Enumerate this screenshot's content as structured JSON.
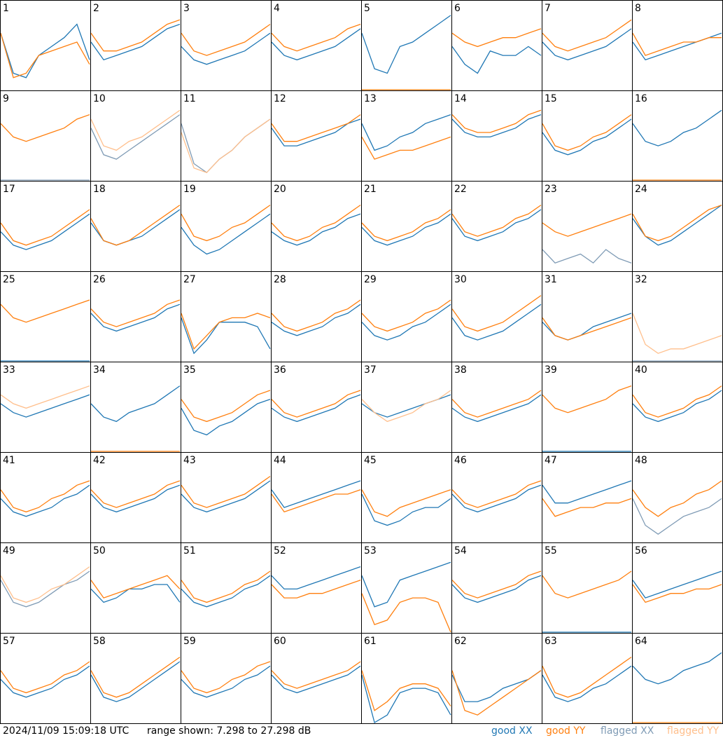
{
  "timestamp": "2024/11/09 15:09:18 UTC",
  "range_label": "range shown: 7.298 to 27.298 dB",
  "ylim": [
    7.298,
    27.298
  ],
  "legend": [
    {
      "name": "good XX",
      "color": "#1f77b4"
    },
    {
      "name": "good YY",
      "color": "#ff7f0e"
    },
    {
      "name": "flagged XX",
      "color": "#7f9bb5"
    },
    {
      "name": "flagged YY",
      "color": "#ffbf8c"
    }
  ],
  "panels": [
    {
      "label": 1,
      "xx": [
        20,
        11,
        10,
        15,
        17,
        19,
        22,
        14
      ],
      "yy": [
        20,
        10,
        11,
        15,
        16,
        17,
        18,
        13
      ]
    },
    {
      "label": 2,
      "xx": [
        18,
        14,
        15,
        16,
        17,
        19,
        21,
        22
      ],
      "yy": [
        20,
        16,
        16,
        17,
        18,
        20,
        22,
        23
      ]
    },
    {
      "label": 3,
      "xx": [
        17,
        14,
        13,
        14,
        15,
        16,
        18,
        20
      ],
      "yy": [
        20,
        16,
        15,
        16,
        17,
        18,
        20,
        22
      ]
    },
    {
      "label": 4,
      "xx": [
        18,
        15,
        14,
        15,
        16,
        17,
        19,
        21
      ],
      "yy": [
        20,
        17,
        16,
        17,
        18,
        19,
        21,
        22
      ]
    },
    {
      "label": 5,
      "xx": [
        20,
        12,
        11,
        17,
        18,
        20,
        22,
        24
      ],
      "yy": [
        7.3,
        7.3,
        7.3,
        7.3,
        7.3,
        7.3,
        7.3,
        7.3
      ]
    },
    {
      "label": 6,
      "xx": [
        17,
        13,
        11,
        16,
        15,
        15,
        17,
        15
      ],
      "yy": [
        20,
        18,
        17,
        18,
        19,
        19,
        20,
        21
      ]
    },
    {
      "label": 7,
      "xx": [
        18,
        15,
        14,
        15,
        16,
        17,
        19,
        21
      ],
      "yy": [
        20,
        17,
        16,
        17,
        18,
        19,
        21,
        23
      ]
    },
    {
      "label": 8,
      "xx": [
        18,
        14,
        15,
        16,
        17,
        18,
        19,
        20
      ],
      "yy": [
        20,
        15,
        16,
        17,
        18,
        18,
        19,
        19
      ]
    },
    {
      "label": 9,
      "xx": [
        7.3,
        7.3,
        7.3,
        7.3,
        7.3,
        7.3,
        7.3,
        7.3
      ],
      "yy": [
        20,
        17,
        16,
        17,
        18,
        19,
        21,
        22
      ],
      "xx_flagged": true
    },
    {
      "label": 10,
      "xx": [
        19,
        13,
        12,
        14,
        16,
        18,
        20,
        22
      ],
      "yy": [
        21,
        15,
        14,
        16,
        17,
        19,
        21,
        23
      ],
      "xx_flagged": true,
      "yy_flagged": true
    },
    {
      "label": 11,
      "xx": [
        20,
        11,
        9,
        12,
        14,
        17,
        19,
        21
      ],
      "yy": [
        18,
        10,
        9,
        12,
        14,
        17,
        19,
        21
      ],
      "xx_flagged": true,
      "yy_flagged": true
    },
    {
      "label": 12,
      "xx": [
        19,
        15,
        15,
        16,
        17,
        18,
        20,
        21
      ],
      "yy": [
        20,
        16,
        16,
        17,
        18,
        19,
        20,
        22
      ]
    },
    {
      "label": 13,
      "xx": [
        20,
        14,
        15,
        17,
        18,
        20,
        21,
        22
      ],
      "yy": [
        17,
        12,
        13,
        14,
        14,
        15,
        16,
        17
      ]
    },
    {
      "label": 14,
      "xx": [
        21,
        18,
        17,
        17,
        18,
        19,
        21,
        22
      ],
      "yy": [
        22,
        19,
        18,
        18,
        19,
        20,
        22,
        23
      ]
    },
    {
      "label": 15,
      "xx": [
        18,
        14,
        13,
        14,
        16,
        17,
        19,
        21
      ],
      "yy": [
        20,
        15,
        14,
        15,
        17,
        18,
        20,
        22
      ]
    },
    {
      "label": 16,
      "xx": [
        20,
        16,
        15,
        16,
        18,
        19,
        21,
        23
      ],
      "yy": [
        7.3,
        7.3,
        7.3,
        7.3,
        7.3,
        7.3,
        7.3,
        7.3
      ]
    },
    {
      "label": 17,
      "xx": [
        16,
        13,
        12,
        13,
        14,
        16,
        18,
        20
      ],
      "yy": [
        18,
        14,
        13,
        14,
        15,
        17,
        19,
        21
      ]
    },
    {
      "label": 18,
      "xx": [
        18,
        14,
        13,
        14,
        15,
        17,
        19,
        21
      ],
      "yy": [
        19,
        14,
        13,
        14,
        16,
        18,
        20,
        22
      ]
    },
    {
      "label": 19,
      "xx": [
        17,
        13,
        11,
        12,
        14,
        16,
        18,
        20
      ],
      "yy": [
        20,
        15,
        14,
        15,
        17,
        18,
        20,
        22
      ]
    },
    {
      "label": 20,
      "xx": [
        16,
        14,
        13,
        14,
        16,
        17,
        19,
        20
      ],
      "yy": [
        18,
        15,
        14,
        15,
        17,
        18,
        20,
        22
      ]
    },
    {
      "label": 21,
      "xx": [
        17,
        14,
        13,
        14,
        15,
        17,
        18,
        20
      ],
      "yy": [
        18,
        15,
        14,
        15,
        16,
        18,
        19,
        21
      ]
    },
    {
      "label": 22,
      "xx": [
        19,
        15,
        14,
        15,
        16,
        18,
        19,
        21
      ],
      "yy": [
        20,
        16,
        15,
        16,
        17,
        19,
        20,
        22
      ]
    },
    {
      "label": 23,
      "xx": [
        12,
        9,
        10,
        11,
        9,
        12,
        10,
        9
      ],
      "yy": [
        18,
        16,
        15,
        16,
        17,
        18,
        19,
        20
      ],
      "xx_flagged": true
    },
    {
      "label": 24,
      "xx": [
        19,
        15,
        13,
        14,
        16,
        18,
        20,
        22
      ],
      "yy": [
        20,
        15,
        14,
        15,
        17,
        19,
        21,
        22
      ]
    },
    {
      "label": 25,
      "xx": [
        7.3,
        7.3,
        7.3,
        7.3,
        7.3,
        7.3,
        7.3,
        7.3
      ],
      "yy": [
        20,
        17,
        16,
        17,
        18,
        19,
        20,
        21
      ]
    },
    {
      "label": 26,
      "xx": [
        18,
        15,
        14,
        15,
        16,
        17,
        19,
        20
      ],
      "yy": [
        19,
        16,
        15,
        16,
        17,
        18,
        20,
        21
      ]
    },
    {
      "label": 27,
      "xx": [
        17,
        9,
        12,
        16,
        16,
        16,
        15,
        10
      ],
      "yy": [
        18,
        10,
        13,
        16,
        17,
        17,
        18,
        17
      ]
    },
    {
      "label": 28,
      "xx": [
        16,
        14,
        13,
        14,
        15,
        17,
        18,
        20
      ],
      "yy": [
        18,
        15,
        14,
        15,
        16,
        18,
        19,
        21
      ]
    },
    {
      "label": 29,
      "xx": [
        16,
        13,
        12,
        13,
        15,
        16,
        18,
        20
      ],
      "yy": [
        18,
        15,
        14,
        15,
        16,
        18,
        19,
        21
      ]
    },
    {
      "label": 30,
      "xx": [
        17,
        13,
        12,
        13,
        14,
        16,
        18,
        20
      ],
      "yy": [
        19,
        15,
        14,
        15,
        16,
        18,
        20,
        22
      ]
    },
    {
      "label": 31,
      "xx": [
        16,
        13,
        12,
        13,
        15,
        16,
        17,
        18
      ],
      "yy": [
        17,
        13,
        12,
        13,
        14,
        15,
        16,
        17
      ]
    },
    {
      "label": 32,
      "xx": [
        7.3,
        7.3,
        7.3,
        7.3,
        7.3,
        7.3,
        7.3,
        7.3
      ],
      "yy": [
        18,
        11,
        9,
        10,
        10,
        11,
        12,
        13
      ],
      "xx_flagged": true,
      "yy_flagged": true
    },
    {
      "label": 33,
      "xx": [
        18,
        16,
        15,
        16,
        17,
        18,
        19,
        20
      ],
      "yy": [
        20,
        18,
        17,
        18,
        19,
        20,
        21,
        22
      ],
      "yy_flagged": true
    },
    {
      "label": 34,
      "xx": [
        18,
        15,
        14,
        16,
        17,
        18,
        20,
        22
      ],
      "yy": [
        7.3,
        7.3,
        7.3,
        7.3,
        7.3,
        7.3,
        7.3,
        7.3
      ]
    },
    {
      "label": 35,
      "xx": [
        17,
        12,
        11,
        13,
        14,
        16,
        18,
        19
      ],
      "yy": [
        19,
        15,
        14,
        15,
        16,
        18,
        20,
        21
      ]
    },
    {
      "label": 36,
      "xx": [
        17,
        15,
        14,
        15,
        16,
        17,
        19,
        20
      ],
      "yy": [
        19,
        16,
        15,
        16,
        17,
        18,
        20,
        21
      ]
    },
    {
      "label": 37,
      "xx": [
        18,
        16,
        15,
        16,
        17,
        18,
        19,
        20
      ],
      "yy": [
        19,
        16,
        14,
        15,
        16,
        18,
        19,
        21
      ],
      "yy_flagged": true
    },
    {
      "label": 38,
      "xx": [
        17,
        15,
        14,
        15,
        16,
        17,
        18,
        20
      ],
      "yy": [
        19,
        16,
        15,
        16,
        17,
        18,
        19,
        21
      ]
    },
    {
      "label": 39,
      "xx": [
        7.3,
        7.3,
        7.3,
        7.3,
        7.3,
        7.3,
        7.3,
        7.3
      ],
      "yy": [
        20,
        17,
        16,
        17,
        18,
        19,
        21,
        22
      ]
    },
    {
      "label": 40,
      "xx": [
        18,
        15,
        14,
        15,
        16,
        18,
        19,
        21
      ],
      "yy": [
        20,
        16,
        15,
        16,
        17,
        19,
        20,
        22
      ]
    },
    {
      "label": 41,
      "xx": [
        17,
        14,
        13,
        14,
        15,
        17,
        18,
        20
      ],
      "yy": [
        19,
        15,
        14,
        15,
        17,
        18,
        20,
        21
      ]
    },
    {
      "label": 42,
      "xx": [
        18,
        15,
        14,
        15,
        16,
        17,
        19,
        20
      ],
      "yy": [
        19,
        16,
        15,
        16,
        17,
        18,
        20,
        21
      ]
    },
    {
      "label": 43,
      "xx": [
        18,
        15,
        14,
        15,
        16,
        17,
        19,
        21
      ],
      "yy": [
        20,
        16,
        15,
        16,
        17,
        18,
        20,
        22
      ]
    },
    {
      "label": 44,
      "xx": [
        19,
        15,
        16,
        17,
        18,
        19,
        20,
        21
      ],
      "yy": [
        18,
        14,
        15,
        16,
        17,
        18,
        18,
        19
      ]
    },
    {
      "label": 45,
      "xx": [
        18,
        12,
        11,
        12,
        14,
        15,
        15,
        17
      ],
      "yy": [
        19,
        14,
        13,
        15,
        16,
        17,
        18,
        19
      ]
    },
    {
      "label": 46,
      "xx": [
        18,
        15,
        14,
        15,
        16,
        17,
        19,
        20
      ],
      "yy": [
        19,
        16,
        15,
        16,
        17,
        18,
        20,
        21
      ]
    },
    {
      "label": 47,
      "xx": [
        20,
        16,
        16,
        17,
        18,
        19,
        20,
        21
      ],
      "yy": [
        17,
        13,
        14,
        15,
        15,
        16,
        16,
        17
      ]
    },
    {
      "label": 48,
      "xx": [
        17,
        11,
        9,
        11,
        13,
        14,
        15,
        17
      ],
      "yy": [
        19,
        15,
        13,
        15,
        16,
        18,
        19,
        21
      ],
      "xx_flagged": true
    },
    {
      "label": 49,
      "xx": [
        19,
        14,
        13,
        14,
        16,
        18,
        19,
        21
      ],
      "yy": [
        20,
        15,
        14,
        15,
        17,
        18,
        20,
        22
      ],
      "xx_flagged": true,
      "yy_flagged": true
    },
    {
      "label": 50,
      "xx": [
        17,
        14,
        15,
        17,
        17,
        18,
        18,
        14
      ],
      "yy": [
        19,
        15,
        16,
        17,
        18,
        19,
        20,
        17
      ]
    },
    {
      "label": 51,
      "xx": [
        17,
        14,
        13,
        14,
        15,
        17,
        18,
        20
      ],
      "yy": [
        19,
        15,
        14,
        15,
        16,
        18,
        19,
        21
      ]
    },
    {
      "label": 52,
      "xx": [
        20,
        17,
        17,
        18,
        19,
        20,
        21,
        22
      ],
      "yy": [
        18,
        15,
        15,
        16,
        16,
        17,
        18,
        19
      ]
    },
    {
      "label": 53,
      "xx": [
        20,
        13,
        14,
        19,
        20,
        21,
        22,
        23
      ],
      "yy": [
        16,
        9,
        10,
        14,
        15,
        15,
        14,
        7.3
      ]
    },
    {
      "label": 54,
      "xx": [
        18,
        15,
        14,
        15,
        16,
        17,
        19,
        20
      ],
      "yy": [
        19,
        16,
        15,
        16,
        17,
        18,
        20,
        21
      ]
    },
    {
      "label": 55,
      "xx": [
        7.3,
        7.3,
        7.3,
        7.3,
        7.3,
        7.3,
        7.3,
        7.3
      ],
      "yy": [
        20,
        16,
        15,
        16,
        17,
        18,
        19,
        21
      ]
    },
    {
      "label": 56,
      "xx": [
        19,
        15,
        16,
        17,
        18,
        19,
        20,
        21
      ],
      "yy": [
        18,
        14,
        15,
        16,
        16,
        17,
        17,
        18
      ]
    },
    {
      "label": 57,
      "xx": [
        17,
        14,
        13,
        14,
        15,
        17,
        18,
        20
      ],
      "yy": [
        19,
        15,
        14,
        15,
        16,
        18,
        19,
        21
      ]
    },
    {
      "label": 58,
      "xx": [
        18,
        13,
        12,
        13,
        15,
        17,
        19,
        21
      ],
      "yy": [
        19,
        14,
        13,
        14,
        16,
        18,
        20,
        22
      ]
    },
    {
      "label": 59,
      "xx": [
        17,
        14,
        13,
        14,
        15,
        17,
        18,
        20
      ],
      "yy": [
        19,
        15,
        14,
        15,
        17,
        18,
        20,
        21
      ]
    },
    {
      "label": 60,
      "xx": [
        18,
        15,
        14,
        15,
        16,
        17,
        18,
        20
      ],
      "yy": [
        19,
        16,
        15,
        16,
        17,
        18,
        19,
        21
      ]
    },
    {
      "label": 61,
      "xx": [
        18,
        7.3,
        9,
        14,
        15,
        15,
        14,
        9
      ],
      "yy": [
        19,
        10,
        12,
        15,
        16,
        16,
        15,
        11
      ]
    },
    {
      "label": 62,
      "xx": [
        18,
        12,
        12,
        13,
        15,
        16,
        17,
        19
      ],
      "yy": [
        19,
        10,
        9,
        11,
        13,
        15,
        17,
        19
      ]
    },
    {
      "label": 63,
      "xx": [
        18,
        13,
        12,
        13,
        15,
        16,
        18,
        20
      ],
      "yy": [
        20,
        14,
        13,
        14,
        16,
        18,
        20,
        22
      ]
    },
    {
      "label": 64,
      "xx": [
        20,
        17,
        16,
        17,
        19,
        20,
        21,
        23
      ],
      "yy": [
        7.3,
        7.3,
        7.3,
        7.3,
        7.3,
        7.3,
        7.3,
        7.3
      ]
    }
  ]
}
